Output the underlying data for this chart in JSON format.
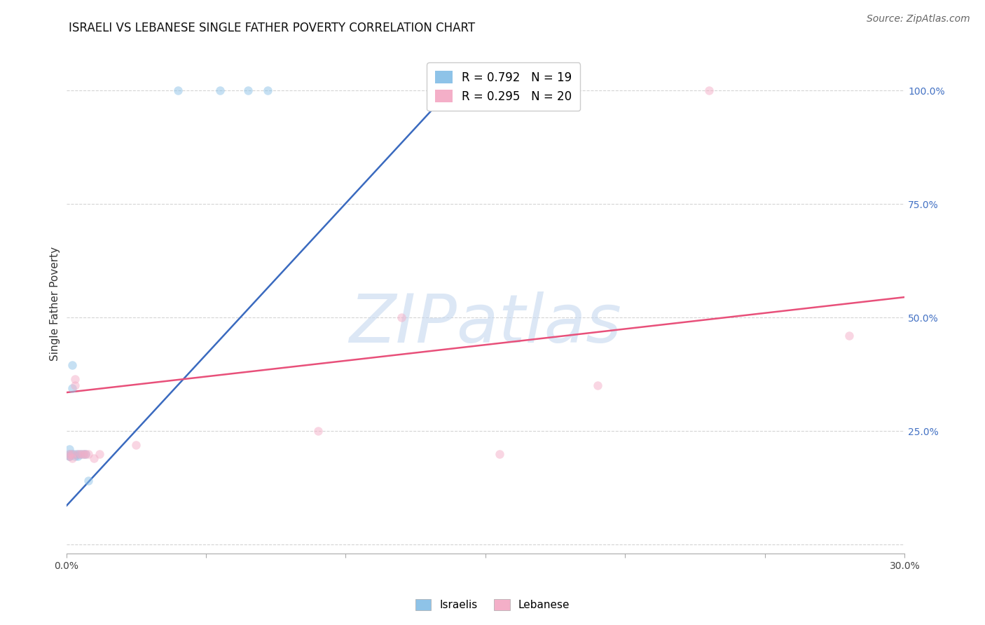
{
  "title": "Israeli vs Lebanese Single Father Poverty Correlation Chart",
  "title_display": "ISRAELI VS LEBANESE SINGLE FATHER POVERTY CORRELATION CHART",
  "source": "Source: ZipAtlas.com",
  "ylabel": "Single Father Poverty",
  "xlim": [
    0.0,
    0.3
  ],
  "ylim": [
    -0.02,
    1.08
  ],
  "xticks": [
    0.0,
    0.05,
    0.1,
    0.15,
    0.2,
    0.25,
    0.3
  ],
  "xtick_labels": [
    "0.0%",
    "",
    "",
    "",
    "",
    "",
    "30.0%"
  ],
  "ytick_right": [
    0.0,
    0.25,
    0.5,
    0.75,
    1.0
  ],
  "ytick_right_labels": [
    "",
    "25.0%",
    "50.0%",
    "75.0%",
    "100.0%"
  ],
  "israeli_color": "#8ec3e8",
  "lebanese_color": "#f4afc8",
  "israeli_line_color": "#3a6abf",
  "lebanese_line_color": "#e8507a",
  "R_israeli": 0.792,
  "N_israeli": 19,
  "R_lebanese": 0.295,
  "N_lebanese": 20,
  "legend_label_israeli": "Israelis",
  "legend_label_lebanese": "Lebanese",
  "watermark_text": "ZIPatlas",
  "background_color": "#ffffff",
  "grid_color": "#d0d0d0",
  "israeli_points_x": [
    0.001,
    0.001,
    0.001,
    0.001,
    0.002,
    0.002,
    0.002,
    0.003,
    0.003,
    0.004,
    0.004,
    0.005,
    0.006,
    0.007,
    0.008,
    0.04,
    0.055,
    0.065,
    0.072
  ],
  "israeli_points_y": [
    0.195,
    0.2,
    0.21,
    0.195,
    0.2,
    0.345,
    0.395,
    0.2,
    0.195,
    0.2,
    0.195,
    0.2,
    0.2,
    0.2,
    0.14,
    1.0,
    1.0,
    1.0,
    1.0
  ],
  "lebanese_points_x": [
    0.001,
    0.001,
    0.002,
    0.002,
    0.003,
    0.003,
    0.004,
    0.005,
    0.006,
    0.007,
    0.008,
    0.01,
    0.012,
    0.025,
    0.09,
    0.12,
    0.155,
    0.19,
    0.23,
    0.28
  ],
  "lebanese_points_y": [
    0.2,
    0.195,
    0.2,
    0.19,
    0.35,
    0.365,
    0.2,
    0.2,
    0.2,
    0.2,
    0.2,
    0.19,
    0.2,
    0.22,
    0.25,
    0.5,
    0.2,
    0.35,
    1.0,
    0.46
  ],
  "israeli_line_x": [
    0.0,
    0.138
  ],
  "israeli_line_y": [
    0.085,
    1.005
  ],
  "lebanese_line_x": [
    0.0,
    0.3
  ],
  "lebanese_line_y": [
    0.335,
    0.545
  ],
  "title_fontsize": 12,
  "source_fontsize": 10,
  "axis_label_fontsize": 11,
  "tick_fontsize": 10,
  "legend_fontsize": 11,
  "marker_size": 9,
  "marker_alpha": 0.5
}
